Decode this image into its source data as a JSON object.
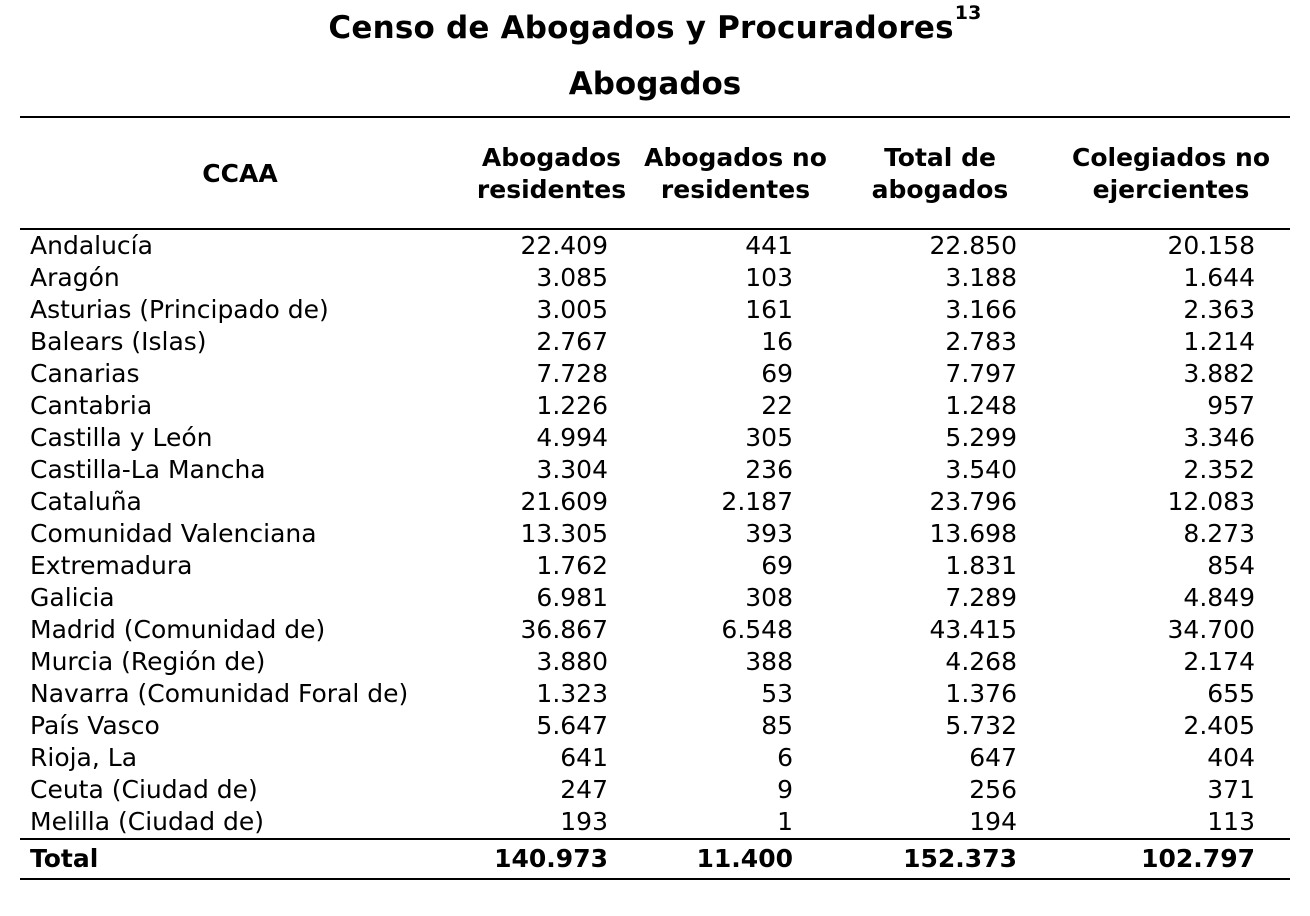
{
  "title": "Censo de Abogados y Procuradores",
  "title_footnote": "13",
  "subtitle": "Abogados",
  "headers": {
    "ccaa": "CCAA",
    "residentes": [
      "Abogados",
      "residentes"
    ],
    "no_residentes": [
      "Abogados no",
      "residentes"
    ],
    "total": [
      "Total de",
      "abogados"
    ],
    "no_ejercientes": [
      "Colegiados no",
      "ejercientes"
    ]
  },
  "rows": [
    {
      "ccaa": "Andalucía",
      "residentes": "22.409",
      "no_residentes": "441",
      "total": "22.850",
      "no_ejercientes": "20.158"
    },
    {
      "ccaa": "Aragón",
      "residentes": "3.085",
      "no_residentes": "103",
      "total": "3.188",
      "no_ejercientes": "1.644"
    },
    {
      "ccaa": "Asturias (Principado de)",
      "residentes": "3.005",
      "no_residentes": "161",
      "total": "3.166",
      "no_ejercientes": "2.363"
    },
    {
      "ccaa": "Balears (Islas)",
      "residentes": "2.767",
      "no_residentes": "16",
      "total": "2.783",
      "no_ejercientes": "1.214"
    },
    {
      "ccaa": "Canarias",
      "residentes": "7.728",
      "no_residentes": "69",
      "total": "7.797",
      "no_ejercientes": "3.882"
    },
    {
      "ccaa": "Cantabria",
      "residentes": "1.226",
      "no_residentes": "22",
      "total": "1.248",
      "no_ejercientes": "957"
    },
    {
      "ccaa": "Castilla y León",
      "residentes": "4.994",
      "no_residentes": "305",
      "total": "5.299",
      "no_ejercientes": "3.346"
    },
    {
      "ccaa": "Castilla-La Mancha",
      "residentes": "3.304",
      "no_residentes": "236",
      "total": "3.540",
      "no_ejercientes": "2.352"
    },
    {
      "ccaa": "Cataluña",
      "residentes": "21.609",
      "no_residentes": "2.187",
      "total": "23.796",
      "no_ejercientes": "12.083"
    },
    {
      "ccaa": "Comunidad Valenciana",
      "residentes": "13.305",
      "no_residentes": "393",
      "total": "13.698",
      "no_ejercientes": "8.273"
    },
    {
      "ccaa": "Extremadura",
      "residentes": "1.762",
      "no_residentes": "69",
      "total": "1.831",
      "no_ejercientes": "854"
    },
    {
      "ccaa": "Galicia",
      "residentes": "6.981",
      "no_residentes": "308",
      "total": "7.289",
      "no_ejercientes": "4.849"
    },
    {
      "ccaa": "Madrid (Comunidad de)",
      "residentes": "36.867",
      "no_residentes": "6.548",
      "total": "43.415",
      "no_ejercientes": "34.700"
    },
    {
      "ccaa": "Murcia (Región de)",
      "residentes": "3.880",
      "no_residentes": "388",
      "total": "4.268",
      "no_ejercientes": "2.174"
    },
    {
      "ccaa": "Navarra (Comunidad Foral de)",
      "residentes": "1.323",
      "no_residentes": "53",
      "total": "1.376",
      "no_ejercientes": "655"
    },
    {
      "ccaa": "País Vasco",
      "residentes": "5.647",
      "no_residentes": "85",
      "total": "5.732",
      "no_ejercientes": "2.405"
    },
    {
      "ccaa": "Rioja, La",
      "residentes": "641",
      "no_residentes": "6",
      "total": "647",
      "no_ejercientes": "404"
    },
    {
      "ccaa": "Ceuta (Ciudad de)",
      "residentes": "247",
      "no_residentes": "9",
      "total": "256",
      "no_ejercientes": "371"
    },
    {
      "ccaa": "Melilla (Ciudad de)",
      "residentes": "193",
      "no_residentes": "1",
      "total": "194",
      "no_ejercientes": "113"
    }
  ],
  "total": {
    "ccaa": "Total",
    "residentes": "140.973",
    "no_residentes": "11.400",
    "total": "152.373",
    "no_ejercientes": "102.797"
  }
}
